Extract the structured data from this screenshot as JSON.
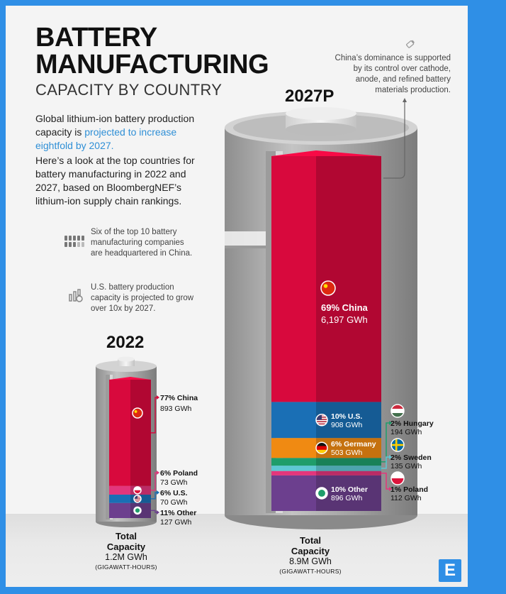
{
  "title_line1": "BATTERY",
  "title_line2": "MANUFACTURING",
  "subtitle": "CAPACITY BY COUNTRY",
  "intro_text_1": "Global lithium-ion battery production capacity is ",
  "intro_highlight": "projected to increase eightfold by 2027.",
  "intro_text_2": "Here’s a look at the top countries for battery manufacturing in 2022 and 2027, based on BloombergNEF’s lithium-ion supply chain rankings.",
  "fact_1": "Six of the top 10 battery manufacturing companies are headquartered in China.",
  "fact_2": "U.S. battery production capacity is projected to grow over 10x by 2027.",
  "note": "China’s dominance is supported by its control over cathode, anode, and refined battery materials production.",
  "logo": "E",
  "colors": {
    "china": "#d8093d",
    "us": "#1a6fb5",
    "germany": "#f08a12",
    "hungary": "#1f9d6b",
    "sweden": "#5ec8d4",
    "poland": "#e3367c",
    "other": "#6c3f8e",
    "accent": "#2f8fe6"
  },
  "chart_data": [
    {
      "type": "bar",
      "title": "2022",
      "unit": "GWh",
      "total_line1": "Total",
      "total_line2": "Capacity",
      "total_value": "1.2M GWh",
      "total_unit": "(GIGAWATT-HOURS)",
      "segments": [
        {
          "name": "China",
          "pct_label": "77% China",
          "share": 77,
          "value": 893,
          "value_label": "893 GWh",
          "icon": "china-flag-icon",
          "color": "#d8093d"
        },
        {
          "name": "Poland",
          "pct_label": "6% Poland",
          "share": 6,
          "value": 73,
          "value_label": "73 GWh",
          "icon": "poland-flag-icon",
          "color": "#e3367c"
        },
        {
          "name": "U.S.",
          "pct_label": "6% U.S.",
          "share": 6,
          "value": 70,
          "value_label": "70 GWh",
          "icon": "us-flag-icon",
          "color": "#1a6fb5"
        },
        {
          "name": "Other",
          "pct_label": "11% Other",
          "share": 11,
          "value": 127,
          "value_label": "127 GWh",
          "icon": "globe-icon",
          "color": "#6c3f8e"
        }
      ]
    },
    {
      "type": "bar",
      "title": "2027P",
      "unit": "GWh",
      "total_line1": "Total",
      "total_line2": "Capacity",
      "total_value": "8.9M GWh",
      "total_unit": "(GIGAWATT-HOURS)",
      "segments": [
        {
          "name": "China",
          "pct_label": "69% China",
          "share": 69,
          "value": 6197,
          "value_label": "6,197 GWh",
          "icon": "china-flag-icon",
          "color": "#d8093d"
        },
        {
          "name": "U.S.",
          "pct_label": "10% U.S.",
          "share": 10,
          "value": 908,
          "value_label": "908 GWh",
          "icon": "us-flag-icon",
          "color": "#1a6fb5"
        },
        {
          "name": "Germany",
          "pct_label": "6% Germany",
          "share": 6,
          "value": 503,
          "value_label": "503 GWh",
          "icon": "germany-flag-icon",
          "color": "#f08a12"
        },
        {
          "name": "Hungary",
          "pct_label": "2% Hungary",
          "share": 2,
          "value": 194,
          "value_label": "194 GWh",
          "icon": "hungary-flag-icon",
          "color": "#1f9d6b"
        },
        {
          "name": "Sweden",
          "pct_label": "2% Sweden",
          "share": 2,
          "value": 135,
          "value_label": "135 GWh",
          "icon": "sweden-flag-icon",
          "color": "#5ec8d4"
        },
        {
          "name": "Poland",
          "pct_label": "1% Poland",
          "share": 1,
          "value": 112,
          "value_label": "112 GWh",
          "icon": "poland-flag-icon",
          "color": "#e3367c"
        },
        {
          "name": "Other",
          "pct_label": "10% Other",
          "share": 10,
          "value": 896,
          "value_label": "896 GWh",
          "icon": "globe-icon",
          "color": "#6c3f8e"
        }
      ]
    }
  ]
}
